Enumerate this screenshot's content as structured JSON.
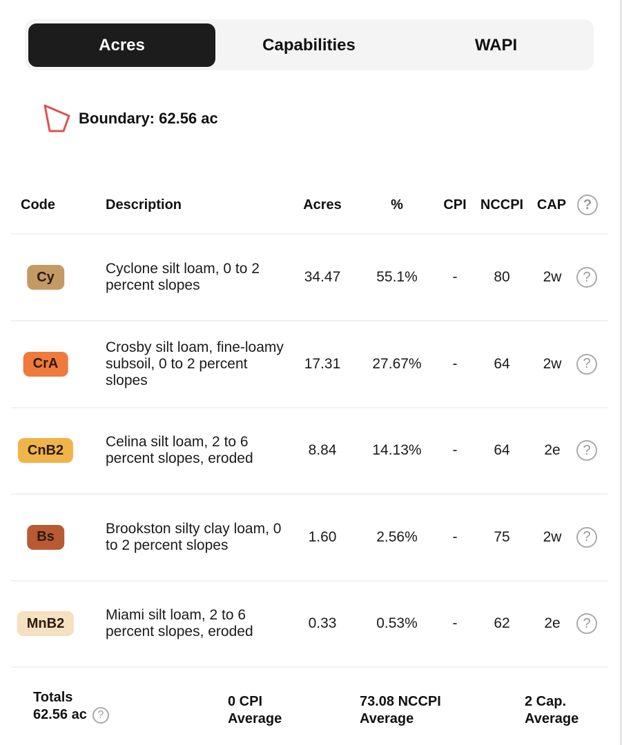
{
  "tabs": [
    {
      "label": "Acres",
      "active": true
    },
    {
      "label": "Capabilities",
      "active": false
    },
    {
      "label": "WAPI",
      "active": false
    }
  ],
  "boundary": {
    "label": "Boundary: 62.56 ac",
    "icon": "polygon-boundary-icon",
    "color": "#e05050"
  },
  "table": {
    "headers": {
      "code": "Code",
      "description": "Description",
      "acres": "Acres",
      "percent": "%",
      "cpi": "CPI",
      "nccpi": "NCCPI",
      "cap": "CAP"
    },
    "rows": [
      {
        "code": "Cy",
        "color": "#c49a64",
        "description": "Cyclone silt loam, 0 to 2 percent slopes",
        "acres": "34.47",
        "percent": "55.1%",
        "cpi": "-",
        "nccpi": "80",
        "cap": "2w"
      },
      {
        "code": "CrA",
        "color": "#f07a3c",
        "description": "Crosby silt loam, fine-loamy subsoil, 0 to 2 percent slopes",
        "acres": "17.31",
        "percent": "27.67%",
        "cpi": "-",
        "nccpi": "64",
        "cap": "2w"
      },
      {
        "code": "CnB2",
        "color": "#f0b44a",
        "description": "Celina silt loam, 2 to 6 percent slopes, eroded",
        "acres": "8.84",
        "percent": "14.13%",
        "cpi": "-",
        "nccpi": "64",
        "cap": "2e"
      },
      {
        "code": "Bs",
        "color": "#b85a32",
        "description": "Brookston silty clay loam, 0 to 2 percent slopes",
        "acres": "1.60",
        "percent": "2.56%",
        "cpi": "-",
        "nccpi": "75",
        "cap": "2w"
      },
      {
        "code": "MnB2",
        "color": "#f5e0c0",
        "description": "Miami silt loam, 2 to 6 percent slopes, eroded",
        "acres": "0.33",
        "percent": "0.53%",
        "cpi": "-",
        "nccpi": "62",
        "cap": "2e"
      }
    ]
  },
  "totals": {
    "label": "Totals",
    "acres": "62.56 ac",
    "cpi_value": "0 CPI",
    "cpi_sub": "Average",
    "nccpi_value": "73.08 NCCPI",
    "nccpi_sub": "Average",
    "cap_value": "2 Cap.",
    "cap_sub": "Average"
  },
  "help_glyph": "?"
}
